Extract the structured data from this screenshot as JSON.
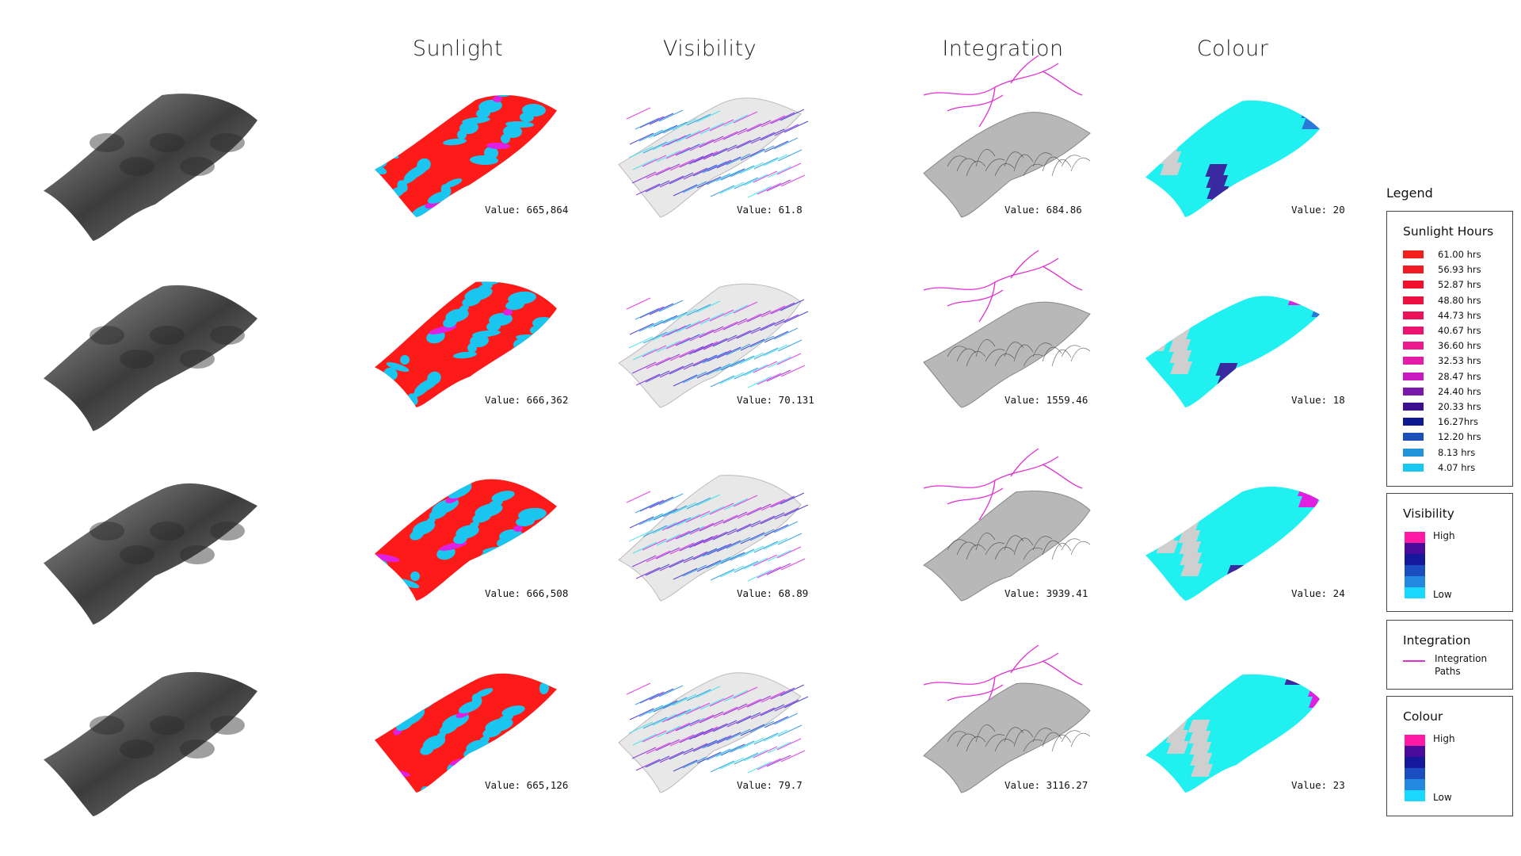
{
  "columns": [
    {
      "id": "sunlight",
      "title": "Sunlight"
    },
    {
      "id": "visibility",
      "title": "Visibility"
    },
    {
      "id": "integration",
      "title": "Integration"
    },
    {
      "id": "colour",
      "title": "Colour"
    }
  ],
  "rows": [
    {
      "sunlight": "Value: 665,864",
      "visibility": "Value: 61.8",
      "integration": "Value: 684.86",
      "colour": "Value: 20"
    },
    {
      "sunlight": "Value: 666,362",
      "visibility": "Value: 70.131",
      "integration": "Value: 1559.46",
      "colour": "Value: 18"
    },
    {
      "sunlight": "Value: 666,508",
      "visibility": "Value: 68.89",
      "integration": "Value: 3939.41",
      "colour": "Value: 24"
    },
    {
      "sunlight": "Value: 665,126",
      "visibility": "Value: 79.7",
      "integration": "Value: 3116.27",
      "colour": "Value: 23"
    }
  ],
  "legend": {
    "title": "Legend",
    "sunlight": {
      "title": "Sunlight Hours",
      "items": [
        {
          "label": "61.00 hrs",
          "color": "#f0201c"
        },
        {
          "label": "56.93 hrs",
          "color": "#f21a24"
        },
        {
          "label": "52.87 hrs",
          "color": "#f0102c"
        },
        {
          "label": "48.80 hrs",
          "color": "#ee1040"
        },
        {
          "label": "44.73 hrs",
          "color": "#ec1258"
        },
        {
          "label": "40.67 hrs",
          "color": "#ea1470"
        },
        {
          "label": "36.60 hrs",
          "color": "#ec1a8c"
        },
        {
          "label": "32.53 hrs",
          "color": "#e41aa8"
        },
        {
          "label": "28.47 hrs",
          "color": "#c81ac0"
        },
        {
          "label": "24.40 hrs",
          "color": "#7a1aa8"
        },
        {
          "label": "20.33 hrs",
          "color": "#3a1090"
        },
        {
          "label": "16.27hrs",
          "color": "#101a90"
        },
        {
          "label": "12.20 hrs",
          "color": "#1a50b8"
        },
        {
          "label": "8.13 hrs",
          "color": "#2294dc"
        },
        {
          "label": "4.07 hrs",
          "color": "#18c8f0"
        }
      ]
    },
    "visibility": {
      "title": "Visibility",
      "high": "High",
      "low": "Low"
    },
    "integration": {
      "title": "Integration",
      "item": "Integration Paths",
      "color": "#e030d0"
    },
    "colour": {
      "title": "Colour",
      "high": "High",
      "low": "Low"
    },
    "gradient_colors": [
      "#ff1aa6",
      "#4a0a9a",
      "#14189a",
      "#1a4ec0",
      "#2288e0",
      "#1ad8ff"
    ]
  },
  "palette": {
    "red": "#ff1a1a",
    "cyan": "#1ac6f0",
    "magenta": "#e020e0",
    "blue": "#2a2ad0",
    "teal": "#20f0f0",
    "grey": "#8a8a8a",
    "path": "#e030d0"
  }
}
